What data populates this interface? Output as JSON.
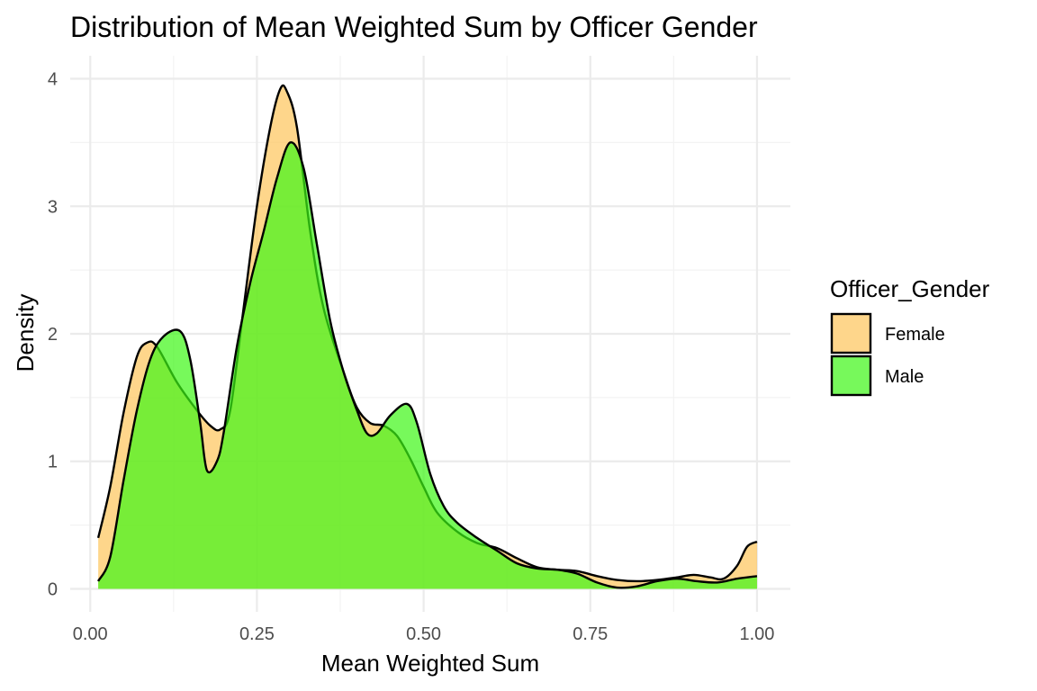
{
  "chart_data": {
    "type": "area",
    "title": "Distribution of Mean Weighted Sum by Officer Gender",
    "xlabel": "Mean Weighted Sum",
    "ylabel": "Density",
    "xlim": [
      -0.03,
      1.05
    ],
    "ylim": [
      -0.18,
      4.18
    ],
    "x_ticks": [
      0.0,
      0.25,
      0.5,
      0.75,
      1.0
    ],
    "x_tick_labels": [
      "0.00",
      "0.25",
      "0.50",
      "0.75",
      "1.00"
    ],
    "y_ticks": [
      0,
      1,
      2,
      3,
      4
    ],
    "y_tick_labels": [
      "0",
      "1",
      "2",
      "3",
      "4"
    ],
    "grid": true,
    "legend": {
      "title": "Officer_Gender",
      "position": "right",
      "entries": [
        "Female",
        "Male"
      ]
    },
    "series": [
      {
        "name": "Female",
        "color": "#fdc55a",
        "points": [
          [
            0.012,
            0.4
          ],
          [
            0.03,
            0.8
          ],
          [
            0.05,
            1.38
          ],
          [
            0.07,
            1.82
          ],
          [
            0.085,
            1.93
          ],
          [
            0.1,
            1.9
          ],
          [
            0.13,
            1.62
          ],
          [
            0.16,
            1.4
          ],
          [
            0.18,
            1.28
          ],
          [
            0.195,
            1.25
          ],
          [
            0.21,
            1.4
          ],
          [
            0.23,
            2.2
          ],
          [
            0.25,
            3.0
          ],
          [
            0.27,
            3.62
          ],
          [
            0.285,
            3.92
          ],
          [
            0.295,
            3.9
          ],
          [
            0.31,
            3.62
          ],
          [
            0.33,
            2.8
          ],
          [
            0.35,
            2.2
          ],
          [
            0.38,
            1.7
          ],
          [
            0.4,
            1.42
          ],
          [
            0.42,
            1.3
          ],
          [
            0.44,
            1.28
          ],
          [
            0.46,
            1.2
          ],
          [
            0.48,
            1.02
          ],
          [
            0.5,
            0.8
          ],
          [
            0.52,
            0.6
          ],
          [
            0.55,
            0.45
          ],
          [
            0.58,
            0.36
          ],
          [
            0.61,
            0.32
          ],
          [
            0.64,
            0.24
          ],
          [
            0.67,
            0.17
          ],
          [
            0.7,
            0.15
          ],
          [
            0.73,
            0.14
          ],
          [
            0.76,
            0.1
          ],
          [
            0.79,
            0.07
          ],
          [
            0.82,
            0.06
          ],
          [
            0.85,
            0.07
          ],
          [
            0.88,
            0.09
          ],
          [
            0.905,
            0.11
          ],
          [
            0.93,
            0.09
          ],
          [
            0.95,
            0.08
          ],
          [
            0.97,
            0.18
          ],
          [
            0.985,
            0.33
          ],
          [
            1.0,
            0.37
          ]
        ]
      },
      {
        "name": "Male",
        "color": "#3df715",
        "points": [
          [
            0.012,
            0.06
          ],
          [
            0.03,
            0.25
          ],
          [
            0.05,
            0.85
          ],
          [
            0.07,
            1.4
          ],
          [
            0.09,
            1.8
          ],
          [
            0.11,
            1.98
          ],
          [
            0.135,
            2.02
          ],
          [
            0.15,
            1.8
          ],
          [
            0.165,
            1.3
          ],
          [
            0.175,
            0.93
          ],
          [
            0.19,
            1.0
          ],
          [
            0.2,
            1.22
          ],
          [
            0.22,
            1.9
          ],
          [
            0.24,
            2.4
          ],
          [
            0.26,
            2.8
          ],
          [
            0.28,
            3.22
          ],
          [
            0.3,
            3.5
          ],
          [
            0.32,
            3.3
          ],
          [
            0.34,
            2.7
          ],
          [
            0.36,
            2.1
          ],
          [
            0.38,
            1.7
          ],
          [
            0.4,
            1.4
          ],
          [
            0.415,
            1.22
          ],
          [
            0.43,
            1.22
          ],
          [
            0.45,
            1.36
          ],
          [
            0.475,
            1.45
          ],
          [
            0.49,
            1.3
          ],
          [
            0.51,
            0.9
          ],
          [
            0.53,
            0.65
          ],
          [
            0.55,
            0.52
          ],
          [
            0.58,
            0.4
          ],
          [
            0.61,
            0.3
          ],
          [
            0.64,
            0.2
          ],
          [
            0.67,
            0.16
          ],
          [
            0.7,
            0.15
          ],
          [
            0.73,
            0.12
          ],
          [
            0.76,
            0.05
          ],
          [
            0.79,
            0.01
          ],
          [
            0.82,
            0.02
          ],
          [
            0.85,
            0.06
          ],
          [
            0.88,
            0.08
          ],
          [
            0.91,
            0.06
          ],
          [
            0.94,
            0.05
          ],
          [
            0.97,
            0.08
          ],
          [
            1.0,
            0.1
          ]
        ]
      }
    ]
  }
}
